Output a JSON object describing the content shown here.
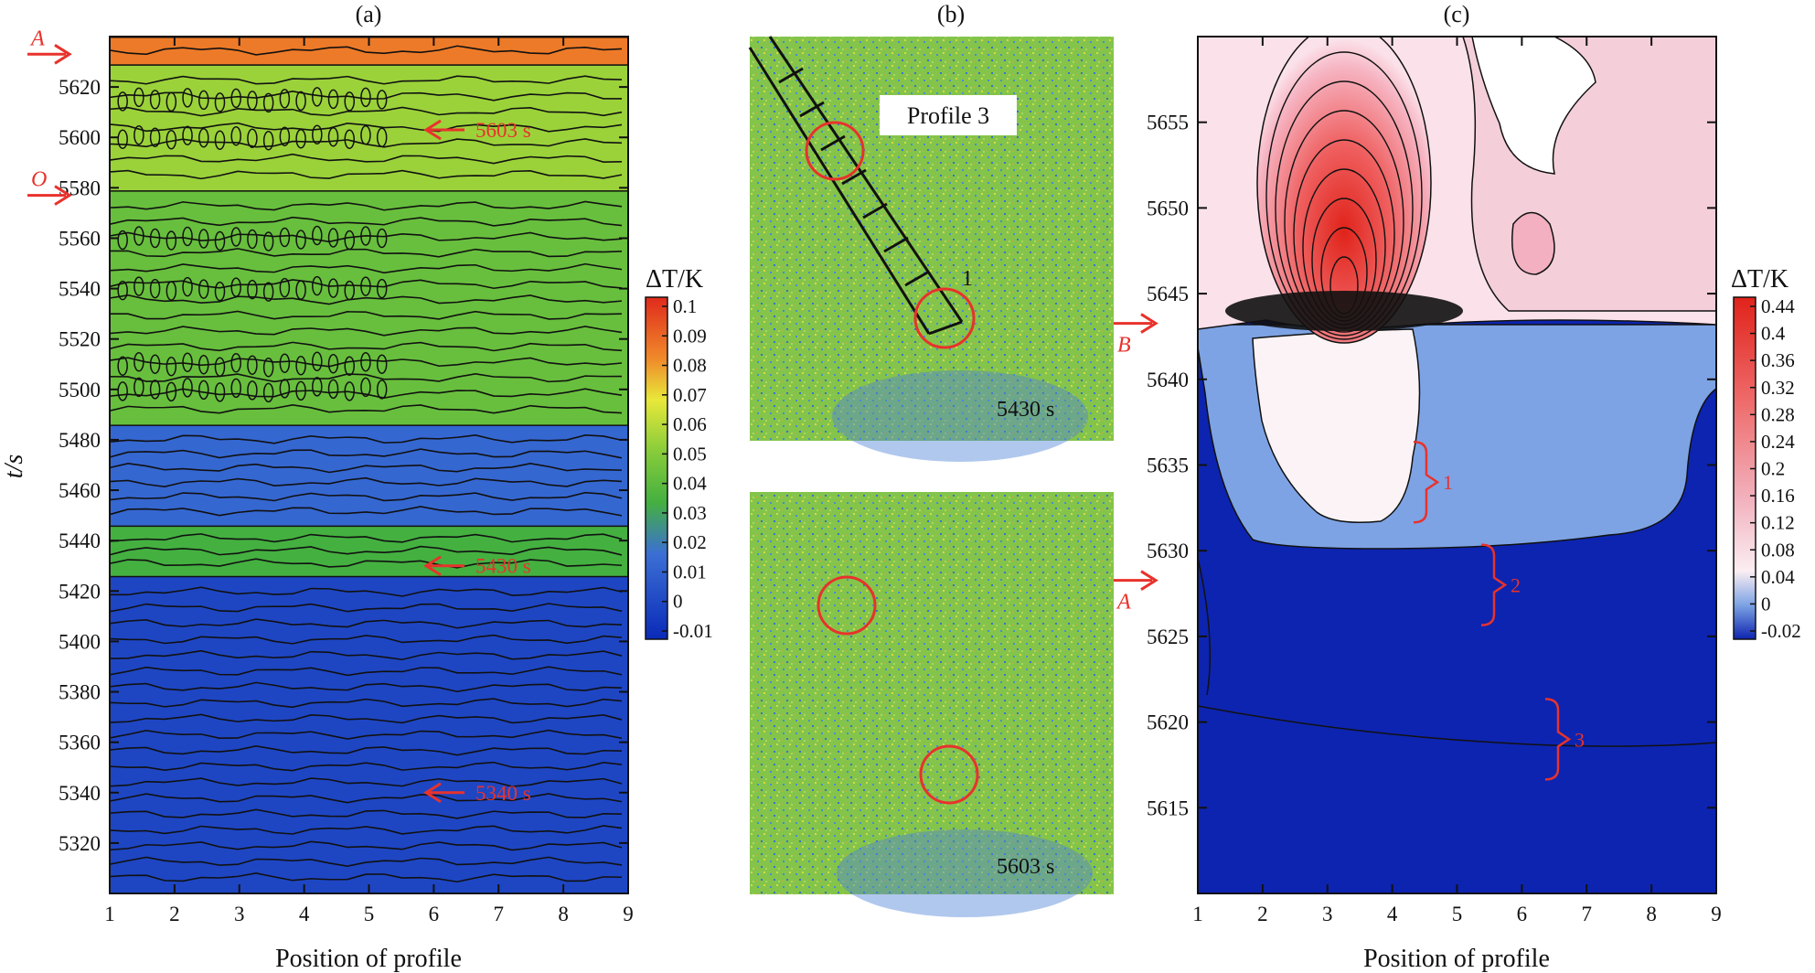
{
  "chart_data": [
    {
      "type": "heatmap",
      "panel_label": "(a)",
      "xlabel": "Position of profile",
      "ylabel": "t/s",
      "xlim": [
        1,
        9
      ],
      "ylim": [
        5300,
        5640
      ],
      "x_ticks": [
        "1",
        "2",
        "3",
        "4",
        "5",
        "6",
        "7",
        "8",
        "9"
      ],
      "y_ticks": [
        "5320",
        "5340",
        "5360",
        "5380",
        "5400",
        "5420",
        "5440",
        "5460",
        "5480",
        "5500",
        "5520",
        "5540",
        "5560",
        "5580",
        "5600",
        "5620"
      ],
      "colorbar_title": "ΔT/K",
      "colorbar_ticks": [
        "0.1",
        "0.09",
        "0.08",
        "0.07",
        "0.06",
        "0.05",
        "0.04",
        "0.03",
        "0.02",
        "0.01",
        "0",
        "-0.01"
      ],
      "colorbar_range": [
        -0.01,
        0.11
      ],
      "bands": [
        {
          "t_from": 5300,
          "t_to": 5426,
          "value": 0.0
        },
        {
          "t_from": 5426,
          "t_to": 5446,
          "value": 0.03
        },
        {
          "t_from": 5446,
          "t_to": 5486,
          "value": 0.012
        },
        {
          "t_from": 5486,
          "t_to": 5579,
          "value": 0.038
        },
        {
          "t_from": 5579,
          "t_to": 5629,
          "value": 0.048
        },
        {
          "t_from": 5629,
          "t_to": 5640,
          "value": 0.085
        }
      ],
      "annotations": [
        {
          "text": "A",
          "t": 5633
        },
        {
          "text": "O",
          "t": 5577
        },
        {
          "text": "5603 s",
          "t": 5603
        },
        {
          "text": "5430 s",
          "t": 5430
        },
        {
          "text": "5340 s",
          "t": 5340
        }
      ]
    },
    {
      "type": "image",
      "panel_label": "(b)",
      "top_image": {
        "profile_label": "Profile 3",
        "profile_end_label": "1",
        "time_label": "5430 s"
      },
      "bottom_image": {
        "time_label": "5603 s"
      }
    },
    {
      "type": "heatmap",
      "panel_label": "(c)",
      "xlabel": "Position of profile",
      "xlim": [
        1,
        9
      ],
      "ylim": [
        5610,
        5660
      ],
      "x_ticks": [
        "1",
        "2",
        "3",
        "4",
        "5",
        "6",
        "7",
        "8",
        "9"
      ],
      "y_ticks": [
        "5615",
        "5620",
        "5625",
        "5630",
        "5635",
        "5640",
        "5645",
        "5650",
        "5655"
      ],
      "colorbar_title": "ΔT/K",
      "colorbar_ticks": [
        "0.44",
        "0.4",
        "0.36",
        "0.32",
        "0.28",
        "0.24",
        "0.2",
        "0.16",
        "0.12",
        "0.08",
        "0.04",
        "0",
        "-0.02"
      ],
      "colorbar_range": [
        -0.02,
        0.44
      ],
      "regions": [
        {
          "name": "background",
          "value": -0.02
        },
        {
          "name": "cool band",
          "value": 0.0
        },
        {
          "name": "warm lobe",
          "value": 0.06
        },
        {
          "name": "hot core",
          "value": 0.44,
          "peak_position": 3.2,
          "peak_t": 5647
        }
      ],
      "annotations": [
        {
          "text": "B",
          "t": 5643
        },
        {
          "text": "A",
          "t": 5628
        },
        {
          "text": "1",
          "t": 5634
        },
        {
          "text": "2",
          "t": 5628
        },
        {
          "text": "3",
          "t": 5619
        }
      ]
    }
  ]
}
